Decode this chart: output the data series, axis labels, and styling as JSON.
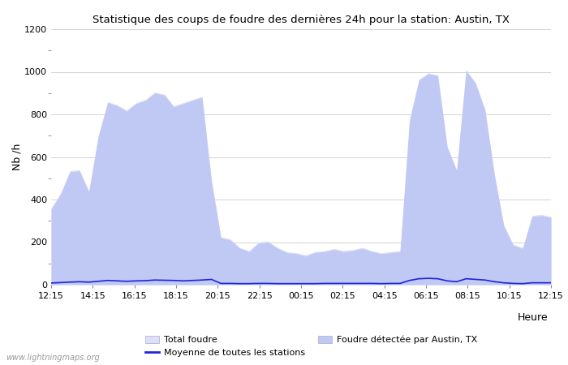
{
  "title": "Statistique des coups de foudre des dernières 24h pour la station: Austin, TX",
  "xlabel": "Heure",
  "ylabel": "Nb /h",
  "xlim_labels": [
    "12:15",
    "14:15",
    "16:15",
    "18:15",
    "20:15",
    "22:15",
    "00:15",
    "02:15",
    "04:15",
    "06:15",
    "08:15",
    "10:15",
    "12:15"
  ],
  "ylim": [
    0,
    1200
  ],
  "yticks": [
    0,
    200,
    400,
    600,
    800,
    1000,
    1200
  ],
  "background_color": "#ffffff",
  "plot_bg_color": "#ffffff",
  "grid_color": "#cccccc",
  "fill_total_color": "#dde0f8",
  "fill_detected_color": "#c0c8f4",
  "line_mean_color": "#2222dd",
  "watermark": "www.lightningmaps.org",
  "total_foudre": [
    360,
    430,
    535,
    540,
    440,
    700,
    860,
    845,
    820,
    855,
    870,
    905,
    895,
    840,
    855,
    870,
    885,
    490,
    225,
    215,
    175,
    160,
    200,
    205,
    175,
    155,
    150,
    140,
    155,
    160,
    170,
    160,
    165,
    175,
    160,
    150,
    155,
    160,
    775,
    965,
    995,
    985,
    650,
    540,
    1010,
    950,
    825,
    520,
    280,
    190,
    175,
    325,
    330,
    320
  ],
  "detected_foudre": [
    355,
    425,
    530,
    535,
    435,
    695,
    855,
    840,
    815,
    850,
    865,
    900,
    890,
    835,
    850,
    865,
    880,
    485,
    220,
    210,
    170,
    155,
    195,
    200,
    170,
    150,
    145,
    135,
    150,
    155,
    165,
    155,
    160,
    170,
    155,
    145,
    150,
    155,
    770,
    960,
    990,
    980,
    645,
    535,
    1005,
    945,
    820,
    515,
    275,
    185,
    170,
    320,
    325,
    315
  ],
  "mean_line": [
    8,
    10,
    12,
    14,
    12,
    16,
    20,
    18,
    16,
    18,
    19,
    22,
    21,
    20,
    18,
    20,
    22,
    25,
    6,
    6,
    5,
    5,
    6,
    6,
    5,
    5,
    5,
    5,
    5,
    6,
    6,
    6,
    6,
    6,
    6,
    5,
    6,
    6,
    20,
    28,
    30,
    28,
    18,
    14,
    28,
    25,
    22,
    14,
    9,
    6,
    5,
    9,
    9,
    9
  ],
  "n_points": 54
}
